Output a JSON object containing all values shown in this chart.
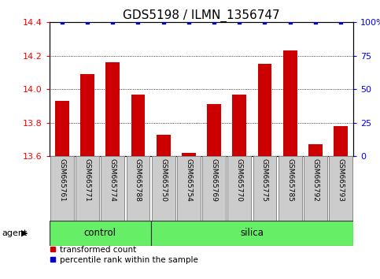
{
  "title": "GDS5198 / ILMN_1356747",
  "samples": [
    "GSM665761",
    "GSM665771",
    "GSM665774",
    "GSM665788",
    "GSM665750",
    "GSM665754",
    "GSM665769",
    "GSM665770",
    "GSM665775",
    "GSM665785",
    "GSM665792",
    "GSM665793"
  ],
  "red_values": [
    13.93,
    14.09,
    14.16,
    13.97,
    13.73,
    13.62,
    13.91,
    13.97,
    14.15,
    14.23,
    13.67,
    13.78
  ],
  "blue_values": [
    100,
    100,
    100,
    100,
    100,
    100,
    100,
    100,
    100,
    100,
    100,
    100
  ],
  "ylim_left": [
    13.6,
    14.4
  ],
  "ylim_right": [
    0,
    100
  ],
  "yticks_left": [
    13.6,
    13.8,
    14.0,
    14.2,
    14.4
  ],
  "yticks_right": [
    0,
    25,
    50,
    75,
    100
  ],
  "n_control": 4,
  "n_silica": 8,
  "bar_color": "#cc0000",
  "dot_color": "#0000cc",
  "green_color": "#66ee66",
  "bg_color": "#ffffff",
  "label_bg": "#cccccc",
  "title_fontsize": 11,
  "legend_items": [
    "transformed count",
    "percentile rank within the sample"
  ],
  "bar_width": 0.55
}
